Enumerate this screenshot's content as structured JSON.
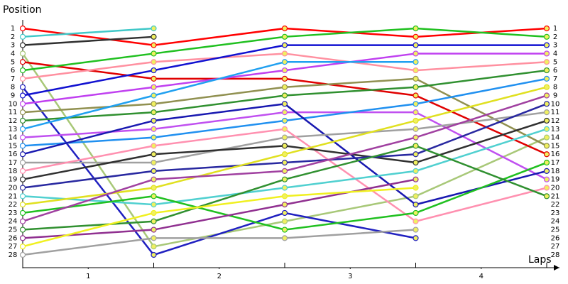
{
  "chart_data": {
    "type": "line",
    "title": "Position",
    "x_label": "Laps",
    "x": [
      0,
      1,
      2,
      3,
      4
    ],
    "xlim": [
      0,
      4
    ],
    "xticks": [
      {
        "value": 0.5,
        "label": "1"
      },
      {
        "value": 1.5,
        "label": "2"
      },
      {
        "value": 2.5,
        "label": "3"
      },
      {
        "value": 3.5,
        "label": "4"
      }
    ],
    "ylim": [
      1,
      28
    ],
    "y_inverted": true,
    "yticks": [
      1,
      2,
      3,
      4,
      5,
      6,
      7,
      8,
      9,
      10,
      11,
      12,
      13,
      14,
      15,
      16,
      17,
      18,
      19,
      20,
      21,
      22,
      23,
      24,
      25,
      26,
      27,
      28
    ],
    "series": [
      {
        "color": "#ff0000",
        "values": [
          1,
          3,
          1,
          2,
          1
        ]
      },
      {
        "color": "#40c8c8",
        "values": [
          2,
          1,
          null,
          null,
          null
        ]
      },
      {
        "color": "#303030",
        "values": [
          3,
          2,
          null,
          null,
          null
        ]
      },
      {
        "color": "#a8c878",
        "values": [
          4,
          27,
          24,
          21,
          14
        ]
      },
      {
        "color": "#e00000",
        "values": [
          5,
          7,
          7,
          9,
          16
        ]
      },
      {
        "color": "#20c020",
        "values": [
          6,
          4,
          2,
          1,
          2
        ]
      },
      {
        "color": "#ff90a0",
        "values": [
          7,
          5,
          4,
          6,
          5
        ]
      },
      {
        "color": "#2020c0",
        "values": [
          8,
          28,
          23,
          26,
          null
        ]
      },
      {
        "color": "#1010d0",
        "values": [
          9,
          6,
          3,
          3,
          3
        ]
      },
      {
        "color": "#c040f0",
        "values": [
          10,
          8,
          6,
          4,
          4
        ]
      },
      {
        "color": "#909050",
        "values": [
          11,
          10,
          8,
          7,
          15
        ]
      },
      {
        "color": "#309030",
        "values": [
          12,
          11,
          9,
          8,
          6
        ]
      },
      {
        "color": "#20a0f0",
        "values": [
          13,
          9,
          5,
          5,
          null
        ]
      },
      {
        "color": "#c050f0",
        "values": [
          14,
          13,
          11,
          11,
          19
        ]
      },
      {
        "color": "#2090f0",
        "values": [
          15,
          14,
          12,
          10,
          7
        ]
      },
      {
        "color": "#1818b0",
        "values": [
          16,
          12,
          10,
          22,
          18
        ]
      },
      {
        "color": "#a0a0a0",
        "values": [
          17,
          17,
          14,
          13,
          11
        ]
      },
      {
        "color": "#ff90b0",
        "values": [
          18,
          15,
          13,
          24,
          20
        ]
      },
      {
        "color": "#303030",
        "values": [
          19,
          16,
          15,
          17,
          12
        ]
      },
      {
        "color": "#2828a0",
        "values": [
          20,
          18,
          17,
          16,
          10
        ]
      },
      {
        "color": "#50d0d0",
        "values": [
          21,
          22,
          20,
          18,
          13
        ]
      },
      {
        "color": "#e0e020",
        "values": [
          22,
          20,
          16,
          12,
          8
        ]
      },
      {
        "color": "#20c020",
        "values": [
          23,
          21,
          25,
          23,
          17
        ]
      },
      {
        "color": "#a040a0",
        "values": [
          24,
          19,
          18,
          14,
          9
        ]
      },
      {
        "color": "#309030",
        "values": [
          25,
          24,
          19,
          15,
          21
        ]
      },
      {
        "color": "#903090",
        "values": [
          26,
          25,
          22,
          19,
          null
        ]
      },
      {
        "color": "#f0f020",
        "values": [
          27,
          23,
          21,
          20,
          null
        ]
      },
      {
        "color": "#a0a0a0",
        "values": [
          28,
          26,
          26,
          25,
          null
        ]
      }
    ]
  }
}
